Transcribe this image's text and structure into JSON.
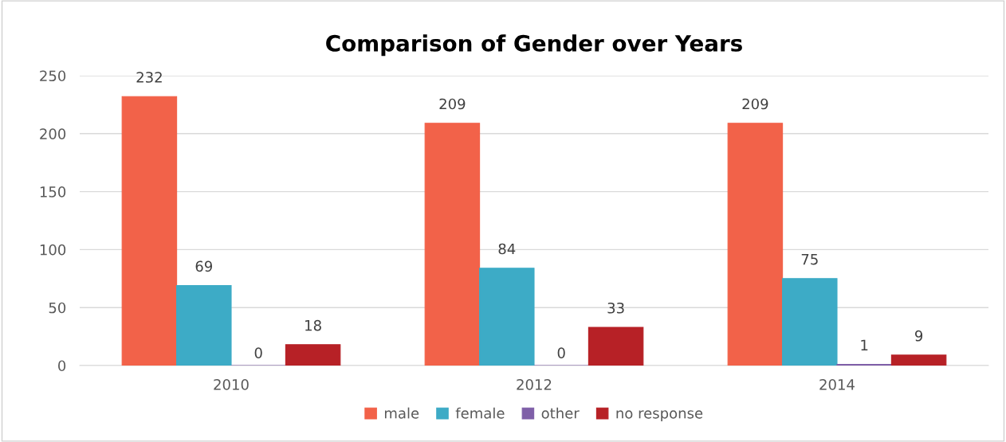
{
  "chart_data": {
    "type": "bar",
    "title": "Comparison of Gender over Years",
    "categories": [
      "2010",
      "2012",
      "2014"
    ],
    "series": [
      {
        "name": "male",
        "color": "#f26249",
        "values": [
          232,
          209,
          209
        ]
      },
      {
        "name": "female",
        "color": "#3dabc6",
        "values": [
          69,
          84,
          75
        ]
      },
      {
        "name": "other",
        "color": "#7f5fa8",
        "values": [
          0,
          0,
          1
        ]
      },
      {
        "name": "no response",
        "color": "#b72126",
        "values": [
          18,
          33,
          9
        ]
      }
    ],
    "ylim": [
      0,
      250
    ],
    "yticks": [
      0,
      50,
      100,
      150,
      200,
      250
    ],
    "grid": "y",
    "legend": "bottom",
    "data_labels": true
  }
}
